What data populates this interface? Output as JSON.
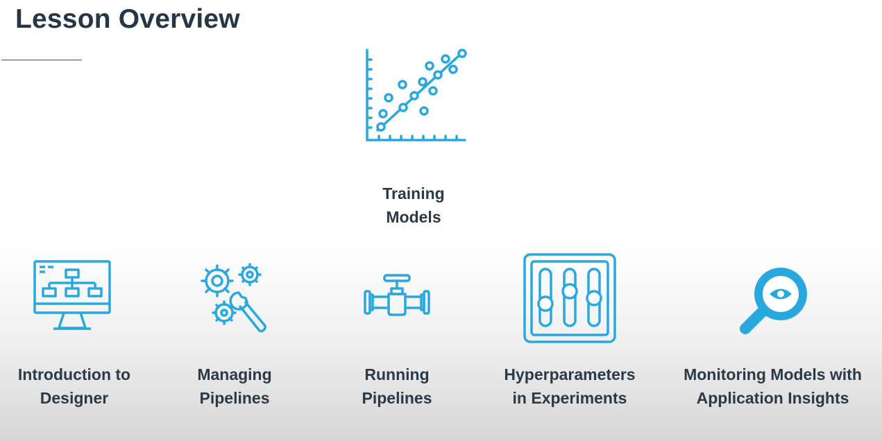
{
  "header": {
    "title": "Lesson Overview"
  },
  "featured_topic": {
    "icon": "scatter-plot-regression-icon",
    "label_lines": [
      "Training",
      "Models"
    ]
  },
  "topics": [
    {
      "icon": "monitor-flowchart-icon",
      "label_lines": [
        "Introduction to",
        "Designer"
      ]
    },
    {
      "icon": "gears-wrench-icon",
      "label_lines": [
        "Managing",
        "Pipelines"
      ]
    },
    {
      "icon": "pipe-valve-icon",
      "label_lines": [
        "Running",
        "Pipelines"
      ]
    },
    {
      "icon": "sliders-icon",
      "label_lines": [
        "Hyperparameters",
        "in Experiments"
      ]
    },
    {
      "icon": "magnifier-eye-icon",
      "label_lines": [
        "Monitoring Models with",
        "Application Insights"
      ]
    }
  ],
  "colors": {
    "icon_blue": "#29a8e0",
    "text": "#2b3a48"
  }
}
